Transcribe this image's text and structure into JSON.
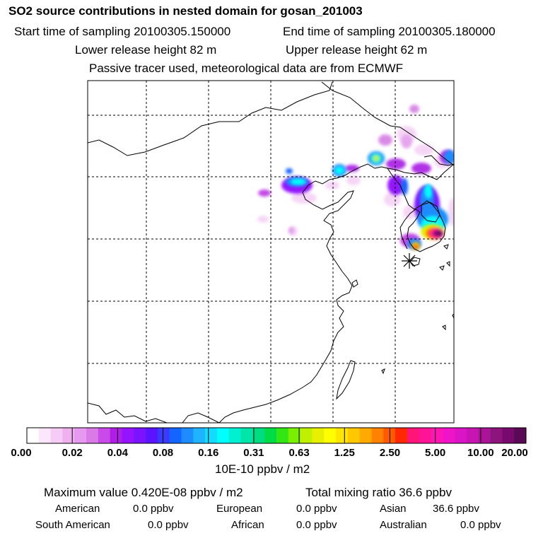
{
  "header": {
    "title": "SO2 source contributions in nested domain for gosan_201003",
    "start_time": "Start time of sampling 20100305.150000",
    "end_time": "End time of sampling 20100305.180000",
    "lower_release": "Lower release height   82 m",
    "upper_release": "Upper release height   62 m",
    "tracer_note": "Passive tracer used, meteorological data are from ECMWF"
  },
  "colorbar": {
    "tick_labels": [
      "0.00",
      "0.02",
      "0.04",
      "0.08",
      "0.16",
      "0.31",
      "0.63",
      "1.25",
      "2.50",
      "5.00",
      "10.00",
      "20.00"
    ],
    "colors": [
      "#ffffff",
      "#fbe6fb",
      "#f5ccf5",
      "#eeb0ee",
      "#e699f0",
      "#d97ae6",
      "#c94ae8",
      "#b01ee6",
      "#9414ff",
      "#7a14ff",
      "#5a14ff",
      "#3a3aff",
      "#1464ff",
      "#1e8cff",
      "#1eb4ff",
      "#14dcff",
      "#00ffff",
      "#00f0d2",
      "#00e6aa",
      "#00dc82",
      "#00dc46",
      "#32e614",
      "#78f000",
      "#bef000",
      "#e6f000",
      "#ffff00",
      "#ffe600",
      "#ffc800",
      "#ffaa00",
      "#ff8200",
      "#ff5a00",
      "#ff2800",
      "#ff1478",
      "#ff1496",
      "#ff14b4",
      "#f014c8",
      "#dc14c8",
      "#c814b4",
      "#aa1496",
      "#8c147d",
      "#780a6e",
      "#5a0a55"
    ],
    "units": "10E-10 ppbv / m2"
  },
  "summary": {
    "max_value": "Maximum value  0.420E-08 ppbv / m2",
    "total_mixing": "Total mixing ratio      36.6 ppbv"
  },
  "regions": [
    {
      "name": "American",
      "value": "0.0 ppbv"
    },
    {
      "name": "European",
      "value": "0.0 ppbv"
    },
    {
      "name": "Asian",
      "value": "36.6 ppbv"
    },
    {
      "name": "South American",
      "value": "0.0 ppbv"
    },
    {
      "name": "African",
      "value": "0.0 ppbv"
    },
    {
      "name": "Australian",
      "value": "0.0 ppbv"
    }
  ],
  "map": {
    "receptor_marker": "star-marker"
  }
}
